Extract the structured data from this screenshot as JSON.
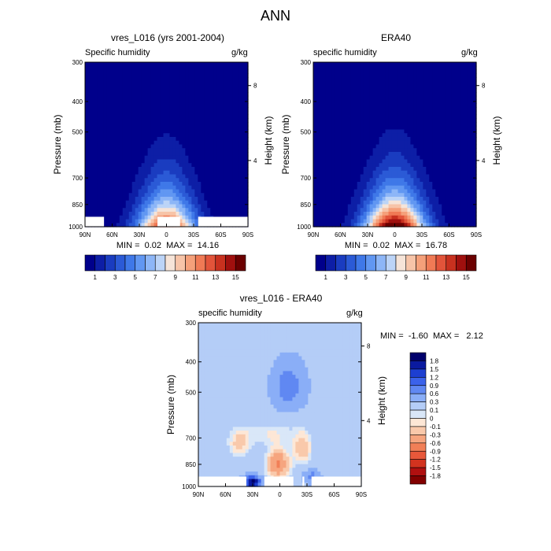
{
  "main_title": "ANN",
  "panels": [
    {
      "title": "vres_L016 (yrs 2001-2004)",
      "left_label": "Specific humidity",
      "right_label": "g/kg",
      "min_max": "MIN =  0.02  MAX =  14.16"
    },
    {
      "title": "ERA40",
      "left_label": "specific humidity",
      "right_label": "g/kg",
      "min_max": "MIN =  0.02  MAX =  16.78"
    },
    {
      "title": "vres_L016 - ERA40",
      "left_label": "specific humidity",
      "right_label": "g/kg",
      "min_max": "MIN =  -1.60  MAX =   2.12"
    }
  ],
  "axes": {
    "ylabel": "Pressure (mb)",
    "ylabel_right": "Height (km)",
    "pressure_ticks": [
      "300",
      "400",
      "500",
      "700",
      "850",
      "1000"
    ],
    "height_ticks": [
      "8",
      "4"
    ],
    "lat_ticks": [
      "90N",
      "60N",
      "30N",
      "0",
      "30S",
      "60S",
      "90S"
    ]
  },
  "colorbar_top": {
    "colors": [
      "#00008b",
      "#0d1ea6",
      "#1a3cc0",
      "#2b5ad6",
      "#3f78e8",
      "#6197f2",
      "#8db6f7",
      "#bcd4f7",
      "#f6e4d8",
      "#f7c4a8",
      "#f5a07a",
      "#f07a55",
      "#e2543a",
      "#c8311f",
      "#a0100e",
      "#6b0000"
    ],
    "labels": [
      "1",
      "3",
      "5",
      "7",
      "9",
      "11",
      "13",
      "15"
    ]
  },
  "colorbar_diff": {
    "colors": [
      "#00006b",
      "#0a1aa0",
      "#1d3fd1",
      "#3b62ea",
      "#6088f2",
      "#8aaef7",
      "#b4cdf7",
      "#d9e7f8",
      "#fde7d6",
      "#f9c9ab",
      "#f6a57f",
      "#f17f57",
      "#e8583a",
      "#d2331f",
      "#b01010",
      "#820000"
    ],
    "labels": [
      "1.8",
      "1.5",
      "1.2",
      "0.9",
      "0.6",
      "0.3",
      "0.1",
      "0",
      "-0.1",
      "-0.3",
      "-0.6",
      "-0.9",
      "-1.2",
      "-1.5",
      "-1.8"
    ]
  },
  "chart_data": [
    {
      "type": "heatmap",
      "title": "vres_L016 (yrs 2001-2004)",
      "xlabel": "",
      "ylabel": "Pressure (mb)",
      "x_ticks": [
        "90N",
        "60N",
        "30N",
        "0",
        "30S",
        "60S",
        "90S"
      ],
      "y_ticks": [
        300,
        400,
        500,
        700,
        850,
        1000
      ],
      "units": "g/kg",
      "min": 0.02,
      "max": 14.16,
      "levels": [
        1,
        2,
        3,
        4,
        5,
        6,
        7,
        8,
        9,
        10,
        11,
        12,
        13,
        14,
        15
      ],
      "peak_profile": {
        "lat": [
          90,
          60,
          30,
          0,
          -30,
          -60,
          -90
        ],
        "surface_value": [
          0.5,
          3,
          9,
          14,
          10,
          3,
          0.3
        ]
      }
    },
    {
      "type": "heatmap",
      "title": "ERA40",
      "xlabel": "",
      "ylabel": "Pressure (mb)",
      "x_ticks": [
        "90N",
        "60N",
        "30N",
        "0",
        "30S",
        "60S",
        "90S"
      ],
      "y_ticks": [
        300,
        400,
        500,
        700,
        850,
        1000
      ],
      "units": "g/kg",
      "min": 0.02,
      "max": 16.78,
      "levels": [
        1,
        2,
        3,
        4,
        5,
        6,
        7,
        8,
        9,
        10,
        11,
        12,
        13,
        14,
        15
      ],
      "peak_profile": {
        "lat": [
          90,
          60,
          30,
          0,
          -30,
          -60,
          -90
        ],
        "surface_value": [
          0.8,
          4,
          11,
          16.5,
          12,
          4,
          0.4
        ]
      }
    },
    {
      "type": "heatmap",
      "title": "vres_L016 - ERA40",
      "xlabel": "",
      "ylabel": "Pressure (mb)",
      "x_ticks": [
        "90N",
        "60N",
        "30N",
        "0",
        "30S",
        "60S",
        "90S"
      ],
      "y_ticks": [
        300,
        400,
        500,
        700,
        850,
        1000
      ],
      "units": "g/kg",
      "min": -1.6,
      "max": 2.12,
      "levels": [
        -1.8,
        -1.5,
        -1.2,
        -0.9,
        -0.6,
        -0.3,
        -0.1,
        0,
        0.1,
        0.3,
        0.6,
        0.9,
        1.2,
        1.5,
        1.8
      ]
    }
  ]
}
